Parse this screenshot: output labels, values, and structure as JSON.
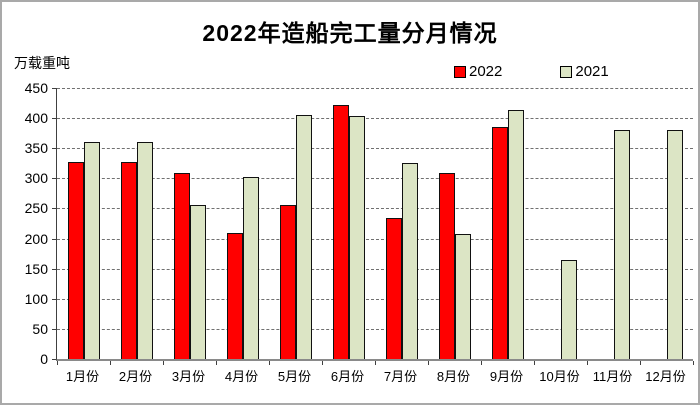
{
  "title": "2022年造船完工量分月情况",
  "y_unit_label": "万载重吨",
  "legend": {
    "items": [
      {
        "label": "2022",
        "color": "#ff0000"
      },
      {
        "label": "2021",
        "color": "#dce5c5"
      }
    ]
  },
  "colors": {
    "bar_2022": "#ff0000",
    "bar_2021": "#dce5c5",
    "bar_border": "#111111",
    "gridline": "#707070",
    "frame_border": "#a9a9a9"
  },
  "chart_data": {
    "type": "bar",
    "title": "2022年造船完工量分月情况",
    "xlabel": "",
    "ylabel": "万载重吨",
    "categories": [
      "1月份",
      "2月份",
      "3月份",
      "4月份",
      "5月份",
      "6月份",
      "7月份",
      "8月份",
      "9月份",
      "10月份",
      "11月份",
      "12月份"
    ],
    "series": [
      {
        "name": "2022",
        "color": "#ff0000",
        "values": [
          327,
          327,
          309,
          210,
          256,
          422,
          234,
          309,
          386,
          null,
          null,
          null
        ]
      },
      {
        "name": "2021",
        "color": "#dce5c5",
        "values": [
          361,
          361,
          255,
          302,
          405,
          404,
          326,
          207,
          414,
          165,
          381,
          381
        ]
      }
    ],
    "ylim": [
      0,
      450
    ],
    "ytick_interval": 50,
    "yticks": [
      0,
      50,
      100,
      150,
      200,
      250,
      300,
      350,
      400,
      450
    ],
    "grid": "horizontal-dashed",
    "legend_position": "top-right"
  }
}
